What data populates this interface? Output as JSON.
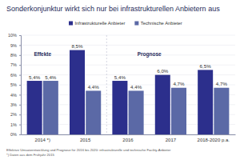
{
  "chart_data": {
    "type": "bar",
    "title": "Sonderkonjunktur wirkt sich nur bei infrastrukturellen Anbietern aus",
    "categories": [
      "2014 *)",
      "2015",
      "2016",
      "2017",
      "2018-2020 p.a."
    ],
    "series": [
      {
        "name": "Infrastrukturelle Anbieter",
        "color": "#2c2f8c",
        "values": [
          5.4,
          8.5,
          5.4,
          6.0,
          6.5
        ],
        "value_labels": [
          "5,4%",
          "8,5%",
          "5,4%",
          "6,0%",
          "6,5%"
        ]
      },
      {
        "name": "Technische Anbieter",
        "color": "#5b69a6",
        "values": [
          5.4,
          4.4,
          4.4,
          4.7,
          4.7
        ],
        "value_labels": [
          "5,4%",
          "4,4%",
          "4,4%",
          "4,7%",
          "4,7%"
        ]
      }
    ],
    "ylim": [
      0,
      10
    ],
    "yticks": [
      {
        "value": 0,
        "label": "0%"
      },
      {
        "value": 1,
        "label": "1%"
      },
      {
        "value": 2,
        "label": "2%"
      },
      {
        "value": 3,
        "label": "3%"
      },
      {
        "value": 4,
        "label": "4%"
      },
      {
        "value": 5,
        "label": "5%"
      },
      {
        "value": 6,
        "label": "6%"
      },
      {
        "value": 7,
        "label": "7%"
      },
      {
        "value": 8,
        "label": "8%"
      },
      {
        "value": 9,
        "label": "9%"
      },
      {
        "value": 10,
        "label": "10%"
      }
    ],
    "grid": true,
    "legend": "top-left",
    "data_labels": true,
    "annotations": [
      "Effekte",
      "Prognose"
    ],
    "footnotes": [
      "Effektive Umsatzentwicklung und Prognose für 2016 bis 2020: infrastrukturelle und technische Facility-Anbieter",
      "*) Daten aus dem Frühjahr 2015"
    ]
  }
}
